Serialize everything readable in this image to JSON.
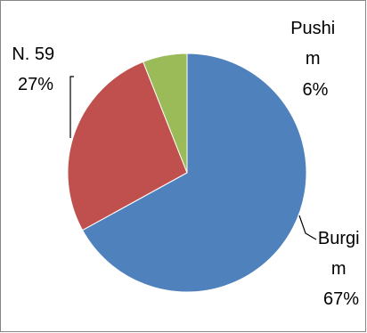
{
  "chart_data": {
    "type": "pie",
    "slices": [
      {
        "label_lines": [
          "Burgi",
          "m"
        ],
        "percent_label": "67%",
        "value": 67,
        "color": "#4F81BD"
      },
      {
        "label_lines": [
          "N. 59"
        ],
        "percent_label": "27%",
        "value": 27,
        "color": "#C0504D"
      },
      {
        "label_lines": [
          "Pushi",
          "m"
        ],
        "percent_label": "6%",
        "value": 6,
        "color": "#9BBB59"
      }
    ],
    "start_angle_deg": 0,
    "direction": "clockwise",
    "legend": "none",
    "border_color": "#868686"
  }
}
